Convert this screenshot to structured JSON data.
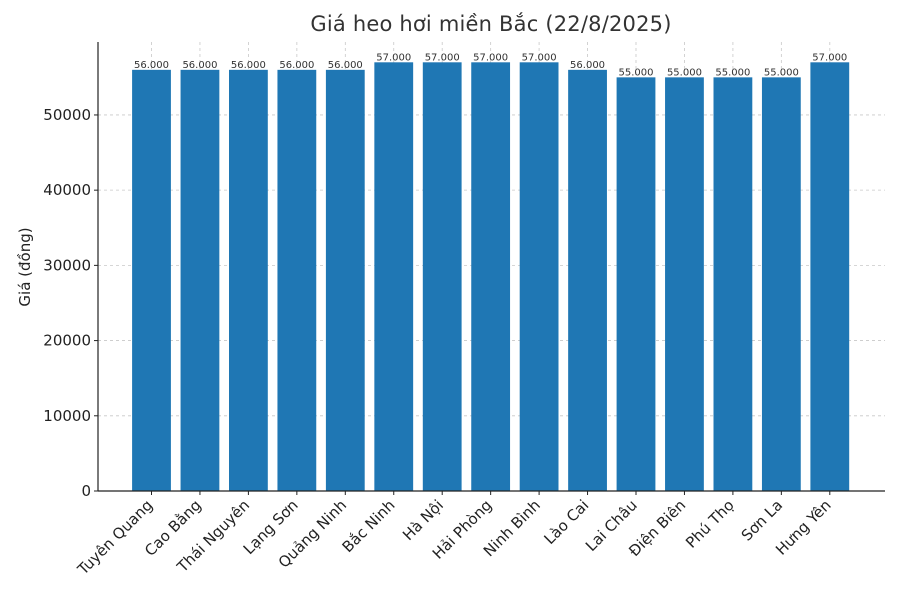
{
  "chart_data": {
    "type": "bar",
    "title": "Giá heo hơi miền Bắc (22/8/2025)",
    "xlabel": "",
    "ylabel": "Giá (đồng)",
    "ylim": [
      0,
      60000
    ],
    "yticks": [
      0,
      10000,
      20000,
      30000,
      40000,
      50000
    ],
    "grid": true,
    "bar_color": "#1f77b4",
    "categories": [
      "Tuyên Quang",
      "Cao Bằng",
      "Thái Nguyên",
      "Lạng Sơn",
      "Quảng Ninh",
      "Bắc Ninh",
      "Hà Nội",
      "Hải Phòng",
      "Ninh Bình",
      "Lào Cai",
      "Lai Châu",
      "Điện Biên",
      "Phú Thọ",
      "Sơn La",
      "Hưng Yên"
    ],
    "values": [
      56000,
      56000,
      56000,
      56000,
      56000,
      57000,
      57000,
      57000,
      57000,
      56000,
      55000,
      55000,
      55000,
      55000,
      57000
    ],
    "data_labels": [
      "56.000",
      "56.000",
      "56.000",
      "56.000",
      "56.000",
      "57.000",
      "57.000",
      "57.000",
      "57.000",
      "56.000",
      "55.000",
      "55.000",
      "55.000",
      "55.000",
      "57.000"
    ]
  }
}
